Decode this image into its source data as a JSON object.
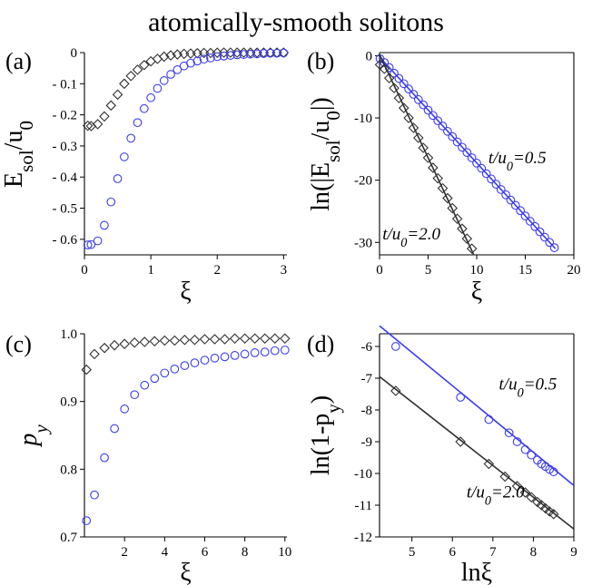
{
  "figure": {
    "title": "atomically-smooth solitons"
  },
  "colors": {
    "blue": "#3b3bf0",
    "black": "#303030",
    "axis": "#000000"
  },
  "chart_data": [
    {
      "id": "a",
      "panel_label": "(a)",
      "type": "scatter",
      "xlabel": "ξ",
      "ylabel": "E_sol/u_0",
      "xlim": [
        0,
        3.05
      ],
      "ylim": [
        -0.65,
        0.0
      ],
      "xticks": [
        0,
        1,
        2,
        3
      ],
      "yticks": [
        0,
        -0.1,
        -0.2,
        -0.3,
        -0.4,
        -0.5,
        -0.6
      ],
      "ytick_labels": [
        "0",
        "- 0.1",
        "- 0.2",
        "- 0.3",
        "- 0.4",
        "- 0.5",
        "- 0.6"
      ],
      "series": [
        {
          "marker": "diamond",
          "color": "black",
          "points": [
            [
              0.05,
              -0.235
            ],
            [
              0.1,
              -0.236
            ],
            [
              0.2,
              -0.23
            ],
            [
              0.3,
              -0.205
            ],
            [
              0.4,
              -0.17
            ],
            [
              0.5,
              -0.135
            ],
            [
              0.6,
              -0.1
            ],
            [
              0.7,
              -0.075
            ],
            [
              0.8,
              -0.055
            ],
            [
              0.9,
              -0.04
            ],
            [
              1.0,
              -0.028
            ],
            [
              1.1,
              -0.02
            ],
            [
              1.2,
              -0.013
            ],
            [
              1.3,
              -0.009
            ],
            [
              1.4,
              -0.006
            ],
            [
              1.5,
              -0.004
            ],
            [
              1.6,
              -0.003
            ],
            [
              1.7,
              -0.002
            ],
            [
              1.8,
              -0.001
            ],
            [
              1.9,
              -0.001
            ],
            [
              2.0,
              -0.0005
            ],
            [
              2.1,
              0
            ],
            [
              2.2,
              0
            ],
            [
              2.3,
              0
            ],
            [
              2.4,
              0
            ],
            [
              2.5,
              0
            ],
            [
              2.6,
              0
            ],
            [
              2.7,
              0
            ],
            [
              2.8,
              0
            ],
            [
              2.9,
              0
            ],
            [
              3.0,
              0
            ]
          ]
        },
        {
          "marker": "circle",
          "color": "blue",
          "points": [
            [
              0.05,
              -0.618
            ],
            [
              0.1,
              -0.617
            ],
            [
              0.2,
              -0.605
            ],
            [
              0.3,
              -0.555
            ],
            [
              0.4,
              -0.48
            ],
            [
              0.5,
              -0.405
            ],
            [
              0.6,
              -0.335
            ],
            [
              0.7,
              -0.275
            ],
            [
              0.8,
              -0.225
            ],
            [
              0.9,
              -0.18
            ],
            [
              1.0,
              -0.145
            ],
            [
              1.1,
              -0.115
            ],
            [
              1.2,
              -0.09
            ],
            [
              1.3,
              -0.07
            ],
            [
              1.4,
              -0.055
            ],
            [
              1.5,
              -0.043
            ],
            [
              1.6,
              -0.034
            ],
            [
              1.7,
              -0.027
            ],
            [
              1.8,
              -0.021
            ],
            [
              1.9,
              -0.017
            ],
            [
              2.0,
              -0.013
            ],
            [
              2.1,
              -0.011
            ],
            [
              2.2,
              -0.009
            ],
            [
              2.3,
              -0.007
            ],
            [
              2.4,
              -0.006
            ],
            [
              2.5,
              -0.005
            ],
            [
              2.6,
              -0.004
            ],
            [
              2.7,
              -0.003
            ],
            [
              2.8,
              -0.002
            ],
            [
              2.9,
              -0.002
            ],
            [
              3.0,
              -0.001
            ]
          ]
        }
      ]
    },
    {
      "id": "b",
      "panel_label": "(b)",
      "type": "scatter",
      "xlabel": "ξ",
      "ylabel": "ln(|E_sol/u_0|)",
      "xlim": [
        0,
        20
      ],
      "ylim": [
        -32,
        0.5
      ],
      "xticks": [
        0,
        5,
        10,
        15,
        20
      ],
      "yticks": [
        0,
        -10,
        -20,
        -30
      ],
      "ytick_labels": [
        "0",
        "-10",
        "-20",
        "-30"
      ],
      "annotations": [
        {
          "text": "t/u_0=0.5",
          "x": 11.2,
          "y": -17.3
        },
        {
          "text": "t/u_0=2.0",
          "x": 0.3,
          "y": -29.5
        }
      ],
      "series": [
        {
          "marker": "circle",
          "color": "blue",
          "fit_line": [
            [
              0,
              -0.2
            ],
            [
              18.1,
              -31.0
            ]
          ],
          "points": [
            [
              0.05,
              -0.48
            ],
            [
              0.5,
              -1.1
            ],
            [
              1.0,
              -1.9
            ],
            [
              1.5,
              -2.8
            ],
            [
              2.0,
              -3.65
            ],
            [
              2.5,
              -4.5
            ],
            [
              3.0,
              -5.35
            ],
            [
              3.5,
              -6.2
            ],
            [
              4.0,
              -7.05
            ],
            [
              4.5,
              -7.9
            ],
            [
              5.0,
              -8.75
            ],
            [
              5.5,
              -9.6
            ],
            [
              6.0,
              -10.45
            ],
            [
              6.5,
              -11.3
            ],
            [
              7.0,
              -12.15
            ],
            [
              7.5,
              -13.0
            ],
            [
              8.0,
              -13.85
            ],
            [
              8.5,
              -14.7
            ],
            [
              9.0,
              -15.55
            ],
            [
              9.5,
              -16.4
            ],
            [
              10.0,
              -17.25
            ],
            [
              10.5,
              -18.1
            ],
            [
              11.0,
              -18.95
            ],
            [
              11.5,
              -19.8
            ],
            [
              12.0,
              -20.65
            ],
            [
              12.5,
              -21.5
            ],
            [
              13.0,
              -22.35
            ],
            [
              13.5,
              -23.2
            ],
            [
              14.0,
              -24.05
            ],
            [
              14.5,
              -24.9
            ],
            [
              15.0,
              -25.75
            ],
            [
              15.5,
              -26.6
            ],
            [
              16.0,
              -27.45
            ],
            [
              16.5,
              -28.3
            ],
            [
              17.0,
              -29.15
            ],
            [
              17.5,
              -30.0
            ],
            [
              18.0,
              -30.85
            ]
          ]
        },
        {
          "marker": "diamond",
          "color": "black",
          "fit_line": [
            [
              0,
              0.2
            ],
            [
              9.7,
              -32.0
            ]
          ],
          "points": [
            [
              0.05,
              -1.45
            ],
            [
              0.5,
              -2.1
            ],
            [
              1.0,
              -3.6
            ],
            [
              1.5,
              -5.2
            ],
            [
              2.0,
              -6.8
            ],
            [
              2.5,
              -8.4
            ],
            [
              3.0,
              -10.0
            ],
            [
              3.5,
              -11.6
            ],
            [
              4.0,
              -13.2
            ],
            [
              4.5,
              -14.8
            ],
            [
              5.0,
              -16.4
            ],
            [
              5.5,
              -18.0
            ],
            [
              6.0,
              -19.7
            ],
            [
              6.5,
              -21.3
            ],
            [
              7.0,
              -22.9
            ],
            [
              7.5,
              -24.5
            ],
            [
              8.0,
              -26.2
            ],
            [
              8.5,
              -27.8
            ],
            [
              9.0,
              -29.4
            ],
            [
              9.5,
              -31.0
            ]
          ]
        }
      ]
    },
    {
      "id": "c",
      "panel_label": "(c)",
      "type": "scatter",
      "xlabel": "ξ",
      "ylabel": "p_y",
      "xlim": [
        0,
        10.1
      ],
      "ylim": [
        0.7,
        1.0
      ],
      "xticks": [
        2,
        4,
        6,
        8,
        10
      ],
      "yticks": [
        0.7,
        0.8,
        0.9,
        1.0
      ],
      "ytick_labels": [
        "0.7",
        "0.8",
        "0.9",
        "1.0"
      ],
      "series": [
        {
          "marker": "diamond",
          "color": "black",
          "points": [
            [
              0.1,
              0.947
            ],
            [
              0.5,
              0.97
            ],
            [
              1.0,
              0.979
            ],
            [
              1.5,
              0.983
            ],
            [
              2.0,
              0.985
            ],
            [
              2.5,
              0.987
            ],
            [
              3.0,
              0.988
            ],
            [
              3.5,
              0.989
            ],
            [
              4.0,
              0.99
            ],
            [
              4.5,
              0.99
            ],
            [
              5.0,
              0.991
            ],
            [
              5.5,
              0.991
            ],
            [
              6.0,
              0.992
            ],
            [
              6.5,
              0.992
            ],
            [
              7.0,
              0.992
            ],
            [
              7.5,
              0.993
            ],
            [
              8.0,
              0.993
            ],
            [
              8.5,
              0.993
            ],
            [
              9.0,
              0.993
            ],
            [
              9.5,
              0.993
            ],
            [
              10.0,
              0.993
            ]
          ]
        },
        {
          "marker": "circle",
          "color": "blue",
          "points": [
            [
              0.1,
              0.724
            ],
            [
              0.5,
              0.762
            ],
            [
              1.0,
              0.817
            ],
            [
              1.5,
              0.86
            ],
            [
              2.0,
              0.889
            ],
            [
              2.5,
              0.91
            ],
            [
              3.0,
              0.924
            ],
            [
              3.5,
              0.934
            ],
            [
              4.0,
              0.942
            ],
            [
              4.5,
              0.948
            ],
            [
              5.0,
              0.953
            ],
            [
              5.5,
              0.957
            ],
            [
              6.0,
              0.961
            ],
            [
              6.5,
              0.964
            ],
            [
              7.0,
              0.966
            ],
            [
              7.5,
              0.968
            ],
            [
              8.0,
              0.97
            ],
            [
              8.5,
              0.972
            ],
            [
              9.0,
              0.973
            ],
            [
              9.5,
              0.975
            ],
            [
              10.0,
              0.976
            ]
          ]
        }
      ]
    },
    {
      "id": "d",
      "panel_label": "(d)",
      "type": "scatter",
      "xlabel": "lnξ",
      "ylabel": "ln(1-p_y)",
      "xlim": [
        4.2,
        9.0
      ],
      "ylim": [
        -12.0,
        -5.6
      ],
      "xticks": [
        5,
        6,
        7,
        8,
        9
      ],
      "yticks": [
        -6,
        -7,
        -8,
        -9,
        -10,
        -11,
        -12
      ],
      "ytick_labels": [
        "-6",
        "-7",
        "-8",
        "-9",
        "-10",
        "-11",
        "-12"
      ],
      "annotations": [
        {
          "text": "t/u_0=0.5",
          "x": 7.15,
          "y": -7.35
        },
        {
          "text": "t/u_0=2.0",
          "x": 6.35,
          "y": -10.75
        }
      ],
      "series": [
        {
          "marker": "circle",
          "color": "blue",
          "fit_line": [
            [
              4.2,
              -5.35
            ],
            [
              9.0,
              -10.38
            ]
          ],
          "points": [
            [
              4.6,
              -6.0
            ],
            [
              6.2,
              -7.6
            ],
            [
              6.9,
              -8.3
            ],
            [
              7.4,
              -8.72
            ],
            [
              7.6,
              -9.0
            ],
            [
              7.8,
              -9.25
            ],
            [
              7.95,
              -9.42
            ],
            [
              8.1,
              -9.58
            ],
            [
              8.2,
              -9.7
            ],
            [
              8.3,
              -9.78
            ],
            [
              8.4,
              -9.87
            ],
            [
              8.5,
              -9.95
            ]
          ]
        },
        {
          "marker": "diamond",
          "color": "black",
          "fit_line": [
            [
              4.2,
              -6.95
            ],
            [
              9.0,
              -11.75
            ]
          ],
          "points": [
            [
              4.6,
              -7.4
            ],
            [
              6.2,
              -9.0
            ],
            [
              6.9,
              -9.7
            ],
            [
              7.3,
              -10.1
            ],
            [
              7.6,
              -10.4
            ],
            [
              7.8,
              -10.6
            ],
            [
              7.95,
              -10.75
            ],
            [
              8.1,
              -10.9
            ],
            [
              8.2,
              -11.0
            ],
            [
              8.3,
              -11.1
            ],
            [
              8.4,
              -11.2
            ],
            [
              8.5,
              -11.28
            ]
          ]
        }
      ]
    }
  ]
}
